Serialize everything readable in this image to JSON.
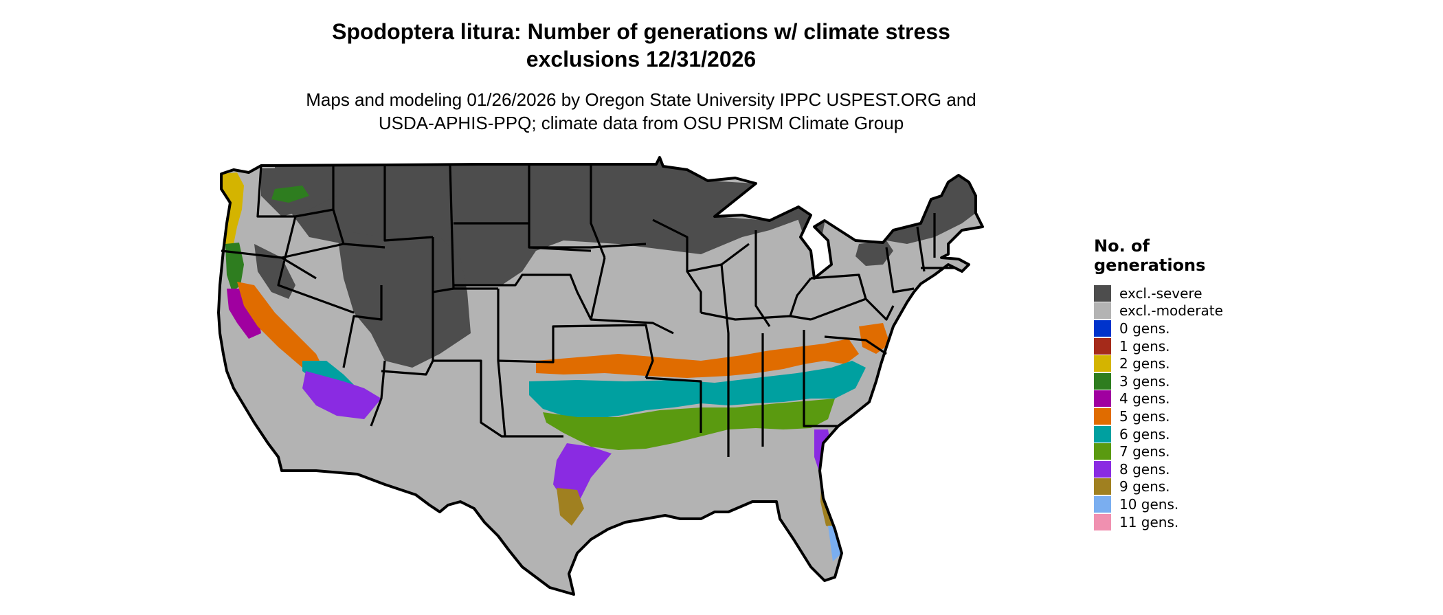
{
  "title": {
    "line1": "Spodoptera litura: Number of generations w/ climate stress",
    "line2": "exclusions 12/31/2026"
  },
  "subtitle": {
    "line1": "Maps and modeling 01/26/2026 by Oregon State University IPPC USPEST.ORG and",
    "line2": "USDA-APHIS-PPQ; climate data from OSU PRISM Climate Group"
  },
  "legend": {
    "title_line1": "No. of",
    "title_line2": "generations",
    "items": [
      {
        "label": "excl.-severe",
        "color": "#4d4d4d"
      },
      {
        "label": "excl.-moderate",
        "color": "#b3b3b3"
      },
      {
        "label": "0 gens.",
        "color": "#0033cc"
      },
      {
        "label": "1 gens.",
        "color": "#a52a1a"
      },
      {
        "label": "2 gens.",
        "color": "#d4b400"
      },
      {
        "label": "3 gens.",
        "color": "#2e7d1f"
      },
      {
        "label": "4 gens.",
        "color": "#a000a0"
      },
      {
        "label": "5 gens.",
        "color": "#e06c00"
      },
      {
        "label": "6 gens.",
        "color": "#00a0a0"
      },
      {
        "label": "7 gens.",
        "color": "#5a9a10"
      },
      {
        "label": "8 gens.",
        "color": "#8a2be2"
      },
      {
        "label": "9 gens.",
        "color": "#a08020"
      },
      {
        "label": "10 gens.",
        "color": "#7aaef0"
      },
      {
        "label": "11 gens.",
        "color": "#f090b0"
      }
    ]
  }
}
